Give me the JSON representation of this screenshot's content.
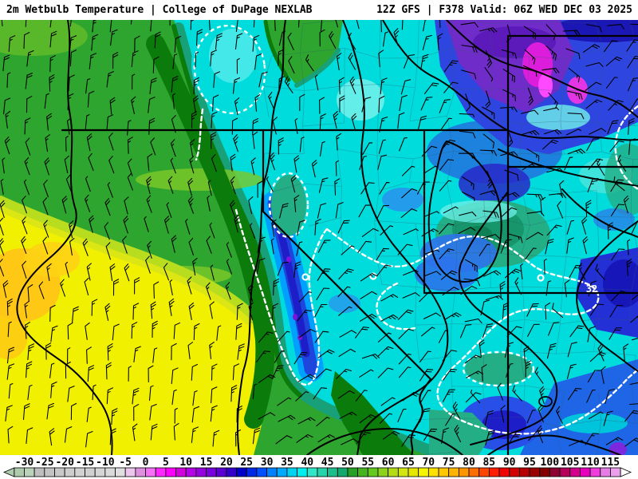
{
  "header": {
    "left_title": "2m Wetbulb Temperature | College of DuPage NEXLAB",
    "right_title": "12Z GFS | F378 Valid: 06Z WED DEC 03 2025"
  },
  "map": {
    "contour_label": "32",
    "contour_label_color": "#FFFFFF",
    "palette": {
      "cyan": "#00DCDC",
      "pale_cyan": "#6FF0EA",
      "sea_green": "#23AE85",
      "sea_green_dark": "#17966B",
      "green": "#2EA52E",
      "light_green": "#7DC828",
      "dark_green": "#0B7B0B",
      "teal_band": "#18A078",
      "yellow": "#F0F000",
      "yellow_green": "#B8DC1E",
      "pale_yellow_green": "#DCE614",
      "orange": "#FFC814",
      "light_blue": "#00A0FF",
      "mid_blue": "#2D73EB",
      "blue": "#1E46DC",
      "dark_blue": "#1E1EC8",
      "deep_blue": "#2330D5",
      "navy": "#1A12B0",
      "blue_wash": "#2E46DF",
      "purple": "#6F2CC9",
      "deep_purple": "#5A18B9",
      "violet": "#7D14DC",
      "magenta": "#DC1EDC",
      "bright_magenta": "#FF49FF",
      "magenta_spot": "#E335E3",
      "white_contour": "#FFFFFF",
      "line_black": "#000000",
      "county_line": "#2F5A6E",
      "barb_color": "#000000"
    }
  },
  "colorbar": {
    "tick_labels": [
      "-30",
      "-25",
      "-20",
      "-15",
      "-10",
      "-5",
      "0",
      "5",
      "10",
      "15",
      "20",
      "25",
      "30",
      "35",
      "40",
      "45",
      "50",
      "55",
      "60",
      "65",
      "70",
      "75",
      "80",
      "85",
      "90",
      "95",
      "100",
      "105",
      "110",
      "115"
    ],
    "tick_step_f": 5,
    "arrow_left_color": "#AECBAE",
    "arrow_right_color": "#FFFFFF",
    "segment_colors": [
      "#AECBAE",
      "#B9D2B9",
      "#BEBEBE",
      "#C3C3C3",
      "#C8C8C8",
      "#CDCDCD",
      "#D2D2D2",
      "#D0D0D0",
      "#D5D5D5",
      "#DADADA",
      "#DFDFDF",
      "#ECC6EC",
      "#DE8FDE",
      "#F570F5",
      "#FF28FF",
      "#FF00FF",
      "#D200DC",
      "#B400E6",
      "#9600DC",
      "#7800DC",
      "#5A00D2",
      "#3200C8",
      "#0000C8",
      "#0028E6",
      "#0050FF",
      "#0082FF",
      "#00AAFF",
      "#00D2F0",
      "#00F0F0",
      "#32E6C8",
      "#28D2AA",
      "#1EBE8C",
      "#14AA6E",
      "#28A028",
      "#46B41E",
      "#64C81E",
      "#8CD21E",
      "#B4DC14",
      "#D2E614",
      "#E6E600",
      "#F5F500",
      "#FFE100",
      "#FFC800",
      "#FFB400",
      "#FF9600",
      "#FF6E00",
      "#FF4600",
      "#FF1E00",
      "#F00000",
      "#D20000",
      "#B40000",
      "#9B0000",
      "#820000",
      "#8C0032",
      "#B4005A",
      "#D2008C",
      "#E600BE",
      "#F03CDC",
      "#E67DE6",
      "#EBA0EB"
    ]
  }
}
